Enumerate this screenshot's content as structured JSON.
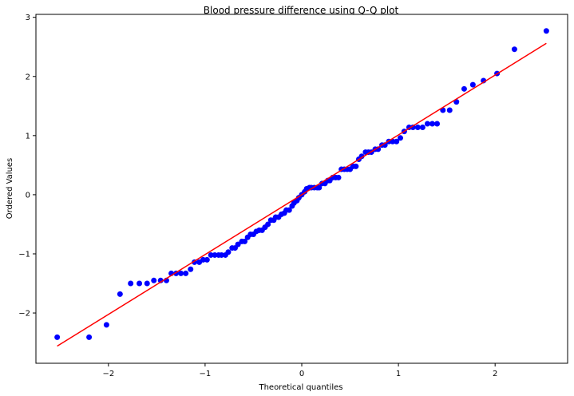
{
  "chart_data": {
    "type": "scatter",
    "title": "Blood pressure difference using Q-Q plot",
    "xlabel": "Theoretical quantiles",
    "ylabel": "Ordered Values",
    "xlim": [
      -2.75,
      2.75
    ],
    "ylim": [
      -2.85,
      3.05
    ],
    "x_ticks": [
      -2,
      -1,
      0,
      1,
      2
    ],
    "x_tick_labels": [
      "−2",
      "−1",
      "0",
      "1",
      "2"
    ],
    "y_ticks": [
      -2,
      -1,
      0,
      1,
      2,
      3
    ],
    "y_tick_labels": [
      "−2",
      "−1",
      "0",
      "1",
      "2",
      "3"
    ],
    "grid": false,
    "colors": {
      "points": "#0000ff",
      "fit_line": "#ff0000"
    },
    "series": [
      {
        "values": [
          {
            "x": -2.53,
            "y": -2.41
          },
          {
            "x": -2.2,
            "y": -2.41
          },
          {
            "x": -2.02,
            "y": -2.2
          },
          {
            "x": -1.88,
            "y": -1.68
          },
          {
            "x": -1.77,
            "y": -1.5
          },
          {
            "x": -1.68,
            "y": -1.5
          },
          {
            "x": -1.6,
            "y": -1.5
          },
          {
            "x": -1.53,
            "y": -1.45
          },
          {
            "x": -1.46,
            "y": -1.45
          },
          {
            "x": -1.4,
            "y": -1.45
          },
          {
            "x": -1.35,
            "y": -1.33
          },
          {
            "x": -1.3,
            "y": -1.33
          },
          {
            "x": -1.25,
            "y": -1.33
          },
          {
            "x": -1.2,
            "y": -1.33
          },
          {
            "x": -1.15,
            "y": -1.26
          },
          {
            "x": -1.11,
            "y": -1.14
          },
          {
            "x": -1.06,
            "y": -1.14
          },
          {
            "x": -1.02,
            "y": -1.1
          },
          {
            "x": -0.98,
            "y": -1.1
          },
          {
            "x": -0.94,
            "y": -1.02
          },
          {
            "x": -0.9,
            "y": -1.02
          },
          {
            "x": -0.86,
            "y": -1.02
          },
          {
            "x": -0.83,
            "y": -1.02
          },
          {
            "x": -0.79,
            "y": -1.02
          },
          {
            "x": -0.76,
            "y": -0.97
          },
          {
            "x": -0.72,
            "y": -0.9
          },
          {
            "x": -0.69,
            "y": -0.9
          },
          {
            "x": -0.66,
            "y": -0.84
          },
          {
            "x": -0.62,
            "y": -0.79
          },
          {
            "x": -0.59,
            "y": -0.79
          },
          {
            "x": -0.56,
            "y": -0.72
          },
          {
            "x": -0.53,
            "y": -0.67
          },
          {
            "x": -0.5,
            "y": -0.67
          },
          {
            "x": -0.47,
            "y": -0.62
          },
          {
            "x": -0.44,
            "y": -0.6
          },
          {
            "x": -0.41,
            "y": -0.6
          },
          {
            "x": -0.38,
            "y": -0.55
          },
          {
            "x": -0.35,
            "y": -0.5
          },
          {
            "x": -0.32,
            "y": -0.43
          },
          {
            "x": -0.29,
            "y": -0.43
          },
          {
            "x": -0.27,
            "y": -0.38
          },
          {
            "x": -0.24,
            "y": -0.38
          },
          {
            "x": -0.21,
            "y": -0.33
          },
          {
            "x": -0.18,
            "y": -0.31
          },
          {
            "x": -0.16,
            "y": -0.26
          },
          {
            "x": -0.13,
            "y": -0.26
          },
          {
            "x": -0.1,
            "y": -0.19
          },
          {
            "x": -0.08,
            "y": -0.14
          },
          {
            "x": -0.05,
            "y": -0.1
          },
          {
            "x": -0.03,
            "y": -0.05
          },
          {
            "x": 0.0,
            "y": 0.0
          },
          {
            "x": 0.03,
            "y": 0.05
          },
          {
            "x": 0.05,
            "y": 0.1
          },
          {
            "x": 0.08,
            "y": 0.12
          },
          {
            "x": 0.1,
            "y": 0.12
          },
          {
            "x": 0.13,
            "y": 0.12
          },
          {
            "x": 0.16,
            "y": 0.12
          },
          {
            "x": 0.18,
            "y": 0.12
          },
          {
            "x": 0.21,
            "y": 0.19
          },
          {
            "x": 0.24,
            "y": 0.19
          },
          {
            "x": 0.27,
            "y": 0.24
          },
          {
            "x": 0.29,
            "y": 0.24
          },
          {
            "x": 0.32,
            "y": 0.29
          },
          {
            "x": 0.35,
            "y": 0.29
          },
          {
            "x": 0.38,
            "y": 0.29
          },
          {
            "x": 0.41,
            "y": 0.43
          },
          {
            "x": 0.44,
            "y": 0.43
          },
          {
            "x": 0.47,
            "y": 0.43
          },
          {
            "x": 0.5,
            "y": 0.43
          },
          {
            "x": 0.53,
            "y": 0.48
          },
          {
            "x": 0.56,
            "y": 0.48
          },
          {
            "x": 0.59,
            "y": 0.6
          },
          {
            "x": 0.62,
            "y": 0.65
          },
          {
            "x": 0.66,
            "y": 0.72
          },
          {
            "x": 0.69,
            "y": 0.72
          },
          {
            "x": 0.72,
            "y": 0.72
          },
          {
            "x": 0.76,
            "y": 0.77
          },
          {
            "x": 0.79,
            "y": 0.77
          },
          {
            "x": 0.83,
            "y": 0.84
          },
          {
            "x": 0.86,
            "y": 0.84
          },
          {
            "x": 0.9,
            "y": 0.9
          },
          {
            "x": 0.94,
            "y": 0.9
          },
          {
            "x": 0.98,
            "y": 0.9
          },
          {
            "x": 1.02,
            "y": 0.96
          },
          {
            "x": 1.06,
            "y": 1.07
          },
          {
            "x": 1.11,
            "y": 1.14
          },
          {
            "x": 1.15,
            "y": 1.14
          },
          {
            "x": 1.2,
            "y": 1.14
          },
          {
            "x": 1.25,
            "y": 1.14
          },
          {
            "x": 1.3,
            "y": 1.2
          },
          {
            "x": 1.35,
            "y": 1.2
          },
          {
            "x": 1.4,
            "y": 1.2
          },
          {
            "x": 1.46,
            "y": 1.43
          },
          {
            "x": 1.53,
            "y": 1.43
          },
          {
            "x": 1.6,
            "y": 1.57
          },
          {
            "x": 1.68,
            "y": 1.79
          },
          {
            "x": 1.77,
            "y": 1.86
          },
          {
            "x": 1.88,
            "y": 1.93
          },
          {
            "x": 2.02,
            "y": 2.05
          },
          {
            "x": 2.2,
            "y": 2.46
          },
          {
            "x": 2.53,
            "y": 2.77
          }
        ]
      },
      {
        "type": "line",
        "values": [
          {
            "x": -2.53,
            "y": -2.56
          },
          {
            "x": 2.53,
            "y": 2.56
          }
        ]
      }
    ]
  }
}
